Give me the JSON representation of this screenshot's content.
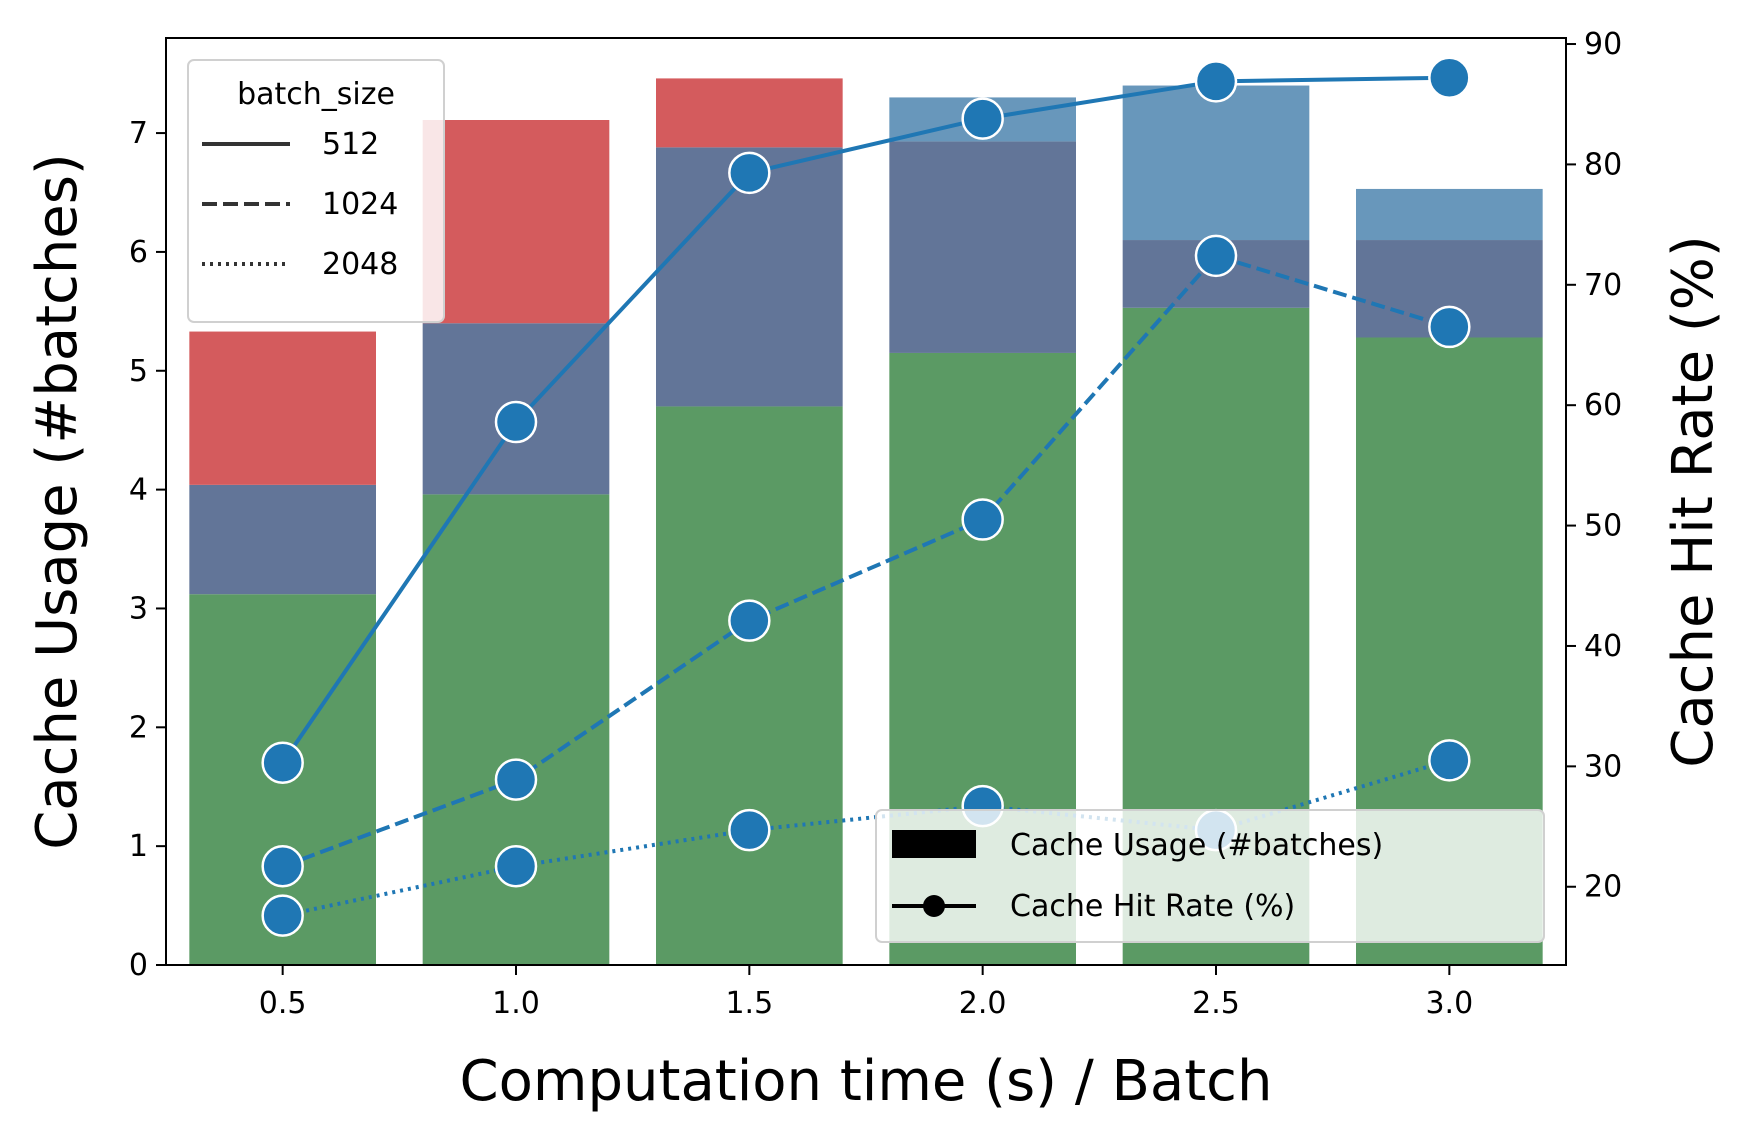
{
  "chart_data": {
    "type": "bar",
    "categories": [
      "0.5",
      "1.0",
      "1.5",
      "2.0",
      "2.5",
      "3.0"
    ],
    "xlabel": "Computation time (s) / Batch",
    "ylabel_left": "Cache Usage (#batches)",
    "ylabel_right": "Cache Hit Rate (%)",
    "ylim_left": [
      0,
      7.8
    ],
    "ylim_right": [
      13.5,
      90.5
    ],
    "yticks_left": [
      0,
      1,
      2,
      3,
      4,
      5,
      6,
      7
    ],
    "yticks_right": [
      20,
      30,
      40,
      50,
      60,
      70,
      80,
      90
    ],
    "bar_stacks": [
      {
        "name": "",
        "color": "#5b9a64",
        "values": [
          3.12,
          3.96,
          4.7,
          5.15,
          5.53,
          5.28
        ]
      },
      {
        "name": "",
        "color": "#627598",
        "values": [
          0.92,
          1.44,
          2.18,
          1.78,
          0.57,
          0.82
        ]
      },
      {
        "name": "",
        "color": "#d45b5d",
        "values": [
          1.29,
          1.71,
          0.58,
          0,
          0,
          0
        ]
      },
      {
        "name": "",
        "color": "#6897bb",
        "values": [
          0,
          0,
          0,
          0.37,
          1.3,
          0.43
        ]
      }
    ],
    "line_color": "#1f77b4",
    "lines": [
      {
        "name": "512",
        "style": "solid",
        "values": [
          30.3,
          58.6,
          79.3,
          83.8,
          86.9,
          87.2
        ]
      },
      {
        "name": "1024",
        "style": "dashed",
        "values": [
          21.7,
          28.9,
          42.1,
          50.5,
          72.4,
          66.5
        ]
      },
      {
        "name": "2048",
        "style": "dotted",
        "values": [
          17.6,
          21.7,
          24.7,
          26.7,
          24.7,
          30.5
        ]
      }
    ],
    "legend_style": {
      "title": "batch_size",
      "position": "top-left",
      "entries": [
        "512",
        "1024",
        "2048"
      ]
    },
    "legend_type": {
      "position": "bottom-right",
      "entries": [
        "Cache Usage (#batches)",
        "Cache Hit Rate (%)"
      ]
    }
  }
}
